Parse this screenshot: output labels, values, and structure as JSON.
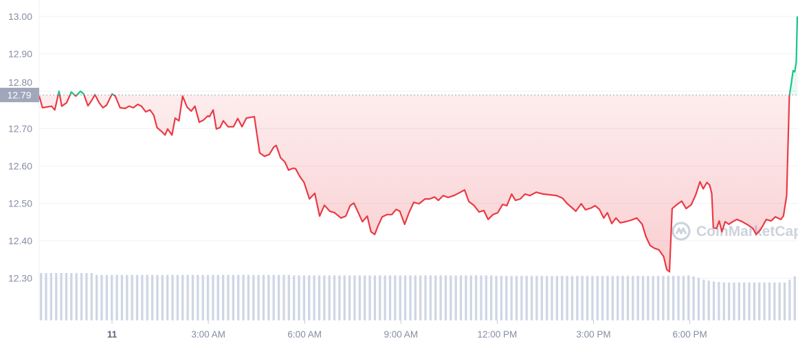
{
  "chart_data": {
    "type": "line",
    "title": "",
    "xlabel": "",
    "ylabel": "",
    "ylim": [
      12.2,
      13.0
    ],
    "grid": true,
    "reference_price": 12.79,
    "reference_label": "12.79",
    "colors": {
      "up": "#16c784",
      "down": "#ea3943",
      "volume": "#cfd6e4",
      "grid": "#eff2f5",
      "tag_bg": "#a1a7bb"
    },
    "y_ticks": [
      {
        "value": 13.0,
        "label": "13.00"
      },
      {
        "value": 12.9,
        "label": "12.90"
      },
      {
        "value": 12.8,
        "label": "12.80"
      },
      {
        "value": 12.7,
        "label": "12.70"
      },
      {
        "value": 12.6,
        "label": "12.60"
      },
      {
        "value": 12.5,
        "label": "12.50"
      },
      {
        "value": 12.4,
        "label": "12.40"
      },
      {
        "value": 12.3,
        "label": "12.30"
      }
    ],
    "x_ticks": [
      {
        "time": "00:00",
        "label": "11",
        "bold": true
      },
      {
        "time": "03:00",
        "label": "3:00 AM"
      },
      {
        "time": "06:00",
        "label": "6:00 AM"
      },
      {
        "time": "09:00",
        "label": "9:00 AM"
      },
      {
        "time": "12:00",
        "label": "12:00 PM"
      },
      {
        "time": "15:00",
        "label": "3:00 PM"
      },
      {
        "time": "18:00",
        "label": "6:00 PM"
      }
    ],
    "series": [
      {
        "points": [
          [
            "21:44",
            12.787
          ],
          [
            "21:50",
            12.756
          ],
          [
            "22:07",
            12.76
          ],
          [
            "22:13",
            12.75
          ],
          [
            "22:21",
            12.8
          ],
          [
            "22:26",
            12.76
          ],
          [
            "22:35",
            12.769
          ],
          [
            "22:44",
            12.798
          ],
          [
            "22:52",
            12.787
          ],
          [
            "23:01",
            12.8
          ],
          [
            "23:07",
            12.793
          ],
          [
            "23:15",
            12.761
          ],
          [
            "23:23",
            12.778
          ],
          [
            "23:28",
            12.791
          ],
          [
            "23:36",
            12.769
          ],
          [
            "23:43",
            12.756
          ],
          [
            "23:50",
            12.763
          ],
          [
            "00:00",
            12.793
          ],
          [
            "00:06",
            12.787
          ],
          [
            "00:15",
            12.756
          ],
          [
            "00:24",
            12.754
          ],
          [
            "00:32",
            12.76
          ],
          [
            "00:40",
            12.756
          ],
          [
            "00:48",
            12.765
          ],
          [
            "00:55",
            12.76
          ],
          [
            "01:03",
            12.745
          ],
          [
            "01:11",
            12.75
          ],
          [
            "01:18",
            12.736
          ],
          [
            "01:24",
            12.703
          ],
          [
            "01:33",
            12.692
          ],
          [
            "01:39",
            12.683
          ],
          [
            "01:44",
            12.699
          ],
          [
            "01:52",
            12.683
          ],
          [
            "01:58",
            12.728
          ],
          [
            "02:05",
            12.721
          ],
          [
            "02:12",
            12.787
          ],
          [
            "02:20",
            12.758
          ],
          [
            "02:28",
            12.747
          ],
          [
            "02:35",
            12.76
          ],
          [
            "02:43",
            12.717
          ],
          [
            "02:51",
            12.723
          ],
          [
            "02:59",
            12.734
          ],
          [
            "03:02",
            12.732
          ],
          [
            "03:09",
            12.75
          ],
          [
            "03:15",
            12.699
          ],
          [
            "03:22",
            12.703
          ],
          [
            "03:28",
            12.721
          ],
          [
            "03:37",
            12.705
          ],
          [
            "03:47",
            12.705
          ],
          [
            "03:55",
            12.727
          ],
          [
            "04:03",
            12.705
          ],
          [
            "04:11",
            12.728
          ],
          [
            "04:26",
            12.732
          ],
          [
            "04:36",
            12.635
          ],
          [
            "04:45",
            12.626
          ],
          [
            "04:54",
            12.631
          ],
          [
            "05:02",
            12.65
          ],
          [
            "05:07",
            12.655
          ],
          [
            "05:15",
            12.622
          ],
          [
            "05:23",
            12.611
          ],
          [
            "05:30",
            12.589
          ],
          [
            "05:38",
            12.594
          ],
          [
            "05:43",
            12.593
          ],
          [
            "05:51",
            12.572
          ],
          [
            "05:59",
            12.556
          ],
          [
            "06:09",
            12.512
          ],
          [
            "06:19",
            12.527
          ],
          [
            "06:28",
            12.466
          ],
          [
            "06:37",
            12.495
          ],
          [
            "06:47",
            12.479
          ],
          [
            "06:56",
            12.475
          ],
          [
            "07:08",
            12.461
          ],
          [
            "07:17",
            12.466
          ],
          [
            "07:25",
            12.494
          ],
          [
            "07:32",
            12.501
          ],
          [
            "07:41",
            12.473
          ],
          [
            "07:48",
            12.451
          ],
          [
            "07:57",
            12.466
          ],
          [
            "08:04",
            12.424
          ],
          [
            "08:11",
            12.417
          ],
          [
            "08:17",
            12.439
          ],
          [
            "08:25",
            12.464
          ],
          [
            "08:34",
            12.47
          ],
          [
            "08:43",
            12.47
          ],
          [
            "08:51",
            12.484
          ],
          [
            "08:58",
            12.479
          ],
          [
            "09:07",
            12.444
          ],
          [
            "09:15",
            12.475
          ],
          [
            "09:24",
            12.503
          ],
          [
            "09:34",
            12.499
          ],
          [
            "09:45",
            12.512
          ],
          [
            "09:54",
            12.512
          ],
          [
            "10:03",
            12.517
          ],
          [
            "10:10",
            12.508
          ],
          [
            "10:19",
            12.521
          ],
          [
            "10:28",
            12.516
          ],
          [
            "10:39",
            12.521
          ],
          [
            "10:49",
            12.528
          ],
          [
            "10:59",
            12.536
          ],
          [
            "11:07",
            12.505
          ],
          [
            "11:17",
            12.494
          ],
          [
            "11:26",
            12.477
          ],
          [
            "11:35",
            12.481
          ],
          [
            "11:43",
            12.457
          ],
          [
            "11:52",
            12.47
          ],
          [
            "12:01",
            12.475
          ],
          [
            "12:10",
            12.497
          ],
          [
            "12:18",
            12.494
          ],
          [
            "12:27",
            12.525
          ],
          [
            "12:34",
            12.508
          ],
          [
            "12:43",
            12.512
          ],
          [
            "12:52",
            12.525
          ],
          [
            "13:01",
            12.521
          ],
          [
            "13:13",
            12.53
          ],
          [
            "13:26",
            12.525
          ],
          [
            "13:39",
            12.523
          ],
          [
            "13:51",
            12.521
          ],
          [
            "14:02",
            12.514
          ],
          [
            "14:11",
            12.499
          ],
          [
            "14:20",
            12.488
          ],
          [
            "14:27",
            12.479
          ],
          [
            "14:37",
            12.499
          ],
          [
            "14:45",
            12.483
          ],
          [
            "14:56",
            12.488
          ],
          [
            "15:03",
            12.494
          ],
          [
            "15:11",
            12.484
          ],
          [
            "15:19",
            12.461
          ],
          [
            "15:26",
            12.475
          ],
          [
            "15:34",
            12.446
          ],
          [
            "15:42",
            12.461
          ],
          [
            "15:50",
            12.448
          ],
          [
            "16:00",
            12.451
          ],
          [
            "16:10",
            12.455
          ],
          [
            "16:21",
            12.461
          ],
          [
            "16:31",
            12.444
          ],
          [
            "16:38",
            12.411
          ],
          [
            "16:46",
            12.387
          ],
          [
            "16:54",
            12.38
          ],
          [
            "17:02",
            12.376
          ],
          [
            "17:11",
            12.358
          ],
          [
            "17:17",
            12.323
          ],
          [
            "17:22",
            12.317
          ],
          [
            "17:27",
            12.486
          ],
          [
            "17:36",
            12.497
          ],
          [
            "17:45",
            12.506
          ],
          [
            "17:53",
            12.486
          ],
          [
            "18:03",
            12.497
          ],
          [
            "18:11",
            12.523
          ],
          [
            "18:19",
            12.558
          ],
          [
            "18:25",
            12.539
          ],
          [
            "18:32",
            12.556
          ],
          [
            "18:37",
            12.549
          ],
          [
            "18:41",
            12.527
          ],
          [
            "18:44",
            12.435
          ],
          [
            "18:50",
            12.433
          ],
          [
            "18:55",
            12.453
          ],
          [
            "19:00",
            12.424
          ],
          [
            "19:06",
            12.451
          ],
          [
            "19:13",
            12.444
          ],
          [
            "19:20",
            12.451
          ],
          [
            "19:28",
            12.457
          ],
          [
            "19:38",
            12.451
          ],
          [
            "19:49",
            12.442
          ],
          [
            "19:58",
            12.433
          ],
          [
            "20:04",
            12.417
          ],
          [
            "20:12",
            12.429
          ],
          [
            "20:23",
            12.457
          ],
          [
            "20:32",
            12.453
          ],
          [
            "20:40",
            12.464
          ],
          [
            "20:50",
            12.457
          ],
          [
            "20:55",
            12.466
          ],
          [
            "21:01",
            12.521
          ],
          [
            "21:06",
            12.787
          ],
          [
            "21:10",
            12.824
          ],
          [
            "21:13",
            12.855
          ],
          [
            "21:16",
            12.852
          ],
          [
            "21:19",
            12.879
          ],
          [
            "21:21",
            13.0
          ]
        ]
      }
    ],
    "volume_relative": [
      1,
      1,
      1,
      1,
      1,
      1,
      1,
      1,
      1,
      1,
      1,
      0.96,
      0.96,
      0.96,
      0.96,
      0.96,
      0.96,
      0.96,
      0.96,
      0.96,
      0.96,
      0.96,
      0.96,
      0.96,
      0.96,
      0.96,
      0.96,
      0.96,
      0.96,
      0.96,
      0.96,
      0.96,
      0.96,
      0.96,
      0.96,
      0.96,
      0.96,
      0.96,
      0.96,
      0.96,
      0.96,
      0.96,
      0.96,
      0.96,
      0.96,
      0.96,
      0.96,
      0.96,
      0.96,
      0.96,
      0.95,
      0.95,
      0.95,
      0.95,
      0.95,
      0.95,
      0.95,
      0.95,
      0.95,
      0.95,
      0.95,
      0.95,
      0.95,
      0.95,
      0.95,
      0.95,
      0.95,
      0.95,
      0.95,
      0.95,
      0.95,
      0.95,
      0.95,
      0.95,
      0.95,
      0.95,
      0.95,
      0.95,
      0.95,
      0.95,
      0.95,
      0.95,
      0.95,
      0.95,
      0.95,
      0.95,
      0.95,
      0.95,
      0.95,
      0.95,
      0.94,
      0.94,
      0.94,
      0.94,
      0.94,
      0.94,
      0.94,
      0.94,
      0.94,
      0.94,
      0.94,
      0.94,
      0.94,
      0.94,
      0.94,
      0.94,
      0.94,
      0.94,
      0.94,
      0.94,
      0.94,
      0.94,
      0.94,
      0.94,
      0.94,
      0.94,
      0.94,
      0.94,
      0.94,
      0.94,
      0.94,
      0.94,
      0.94,
      0.94,
      0.94,
      0.94,
      0.94,
      0.94,
      0.95,
      0.93,
      0.9,
      0.86,
      0.84,
      0.82,
      0.81,
      0.8,
      0.8,
      0.8,
      0.8,
      0.8,
      0.8,
      0.8,
      0.8,
      0.8,
      0.8,
      0.8,
      0.8,
      0.8,
      0.86,
      0.93
    ]
  },
  "watermark": {
    "text": "CoinMarketCap",
    "icon": "coinmarketcap-logo"
  }
}
